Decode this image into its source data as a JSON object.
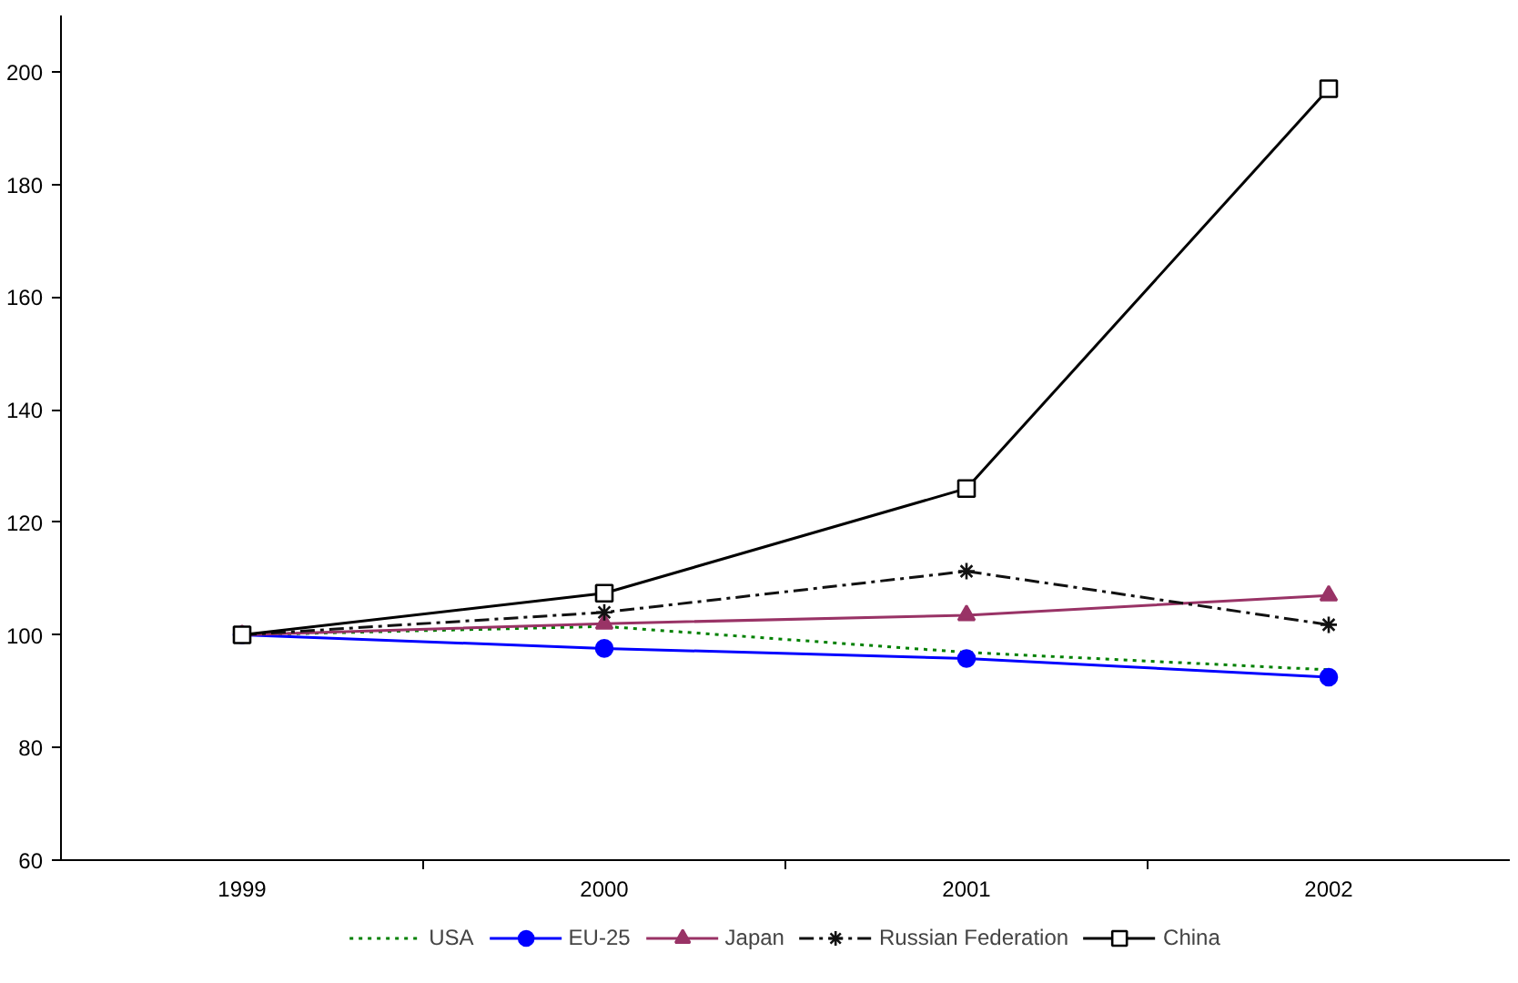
{
  "chart_data": {
    "type": "line",
    "categories": [
      "1999",
      "2000",
      "2001",
      "2002"
    ],
    "ylim": [
      60,
      210
    ],
    "yticks": [
      60,
      80,
      100,
      120,
      140,
      160,
      180,
      200
    ],
    "grid": false,
    "legend": "bottom",
    "series": [
      {
        "name": "USA",
        "color": "#008000",
        "line_style": "dotted",
        "marker": "none",
        "values": [
          100,
          101.5,
          96.9,
          93.8
        ]
      },
      {
        "name": "EU-25",
        "color": "#0000ff",
        "line_style": "solid",
        "marker": "circle",
        "values": [
          100,
          97.6,
          95.8,
          92.5
        ]
      },
      {
        "name": "Japan",
        "color": "#993366",
        "line_style": "solid",
        "marker": "triangle",
        "values": [
          100,
          102,
          103.5,
          107
        ]
      },
      {
        "name": "Russian Federation",
        "color": "#111111",
        "line_style": "dashdot",
        "marker": "cross",
        "values": [
          100,
          104,
          111.3,
          101.8
        ]
      },
      {
        "name": "China",
        "color": "#000000",
        "line_style": "solid",
        "marker": "square",
        "values": [
          100,
          107.4,
          126,
          197
        ]
      }
    ]
  }
}
